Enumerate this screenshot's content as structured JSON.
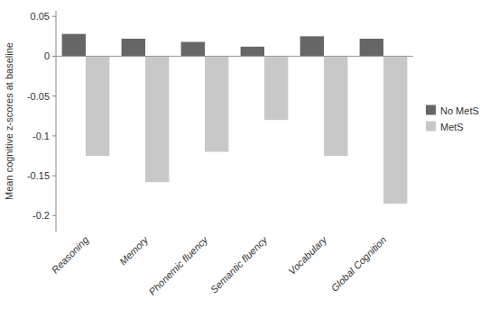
{
  "chart_data": {
    "type": "bar",
    "categories": [
      "Reasoning",
      "Memory",
      "Phonemic fluency",
      "Semantic fluency",
      "Vocabulary",
      "Global Cognition"
    ],
    "series": [
      {
        "name": "No MetS",
        "color": "#666666",
        "values": [
          0.028,
          0.022,
          0.018,
          0.012,
          0.025,
          0.022
        ]
      },
      {
        "name": "MetS",
        "color": "#c8c8c8",
        "values": [
          -0.125,
          -0.158,
          -0.12,
          -0.08,
          -0.125,
          -0.185
        ]
      }
    ],
    "ylabel": "Mean cognitive z-scores at baseline",
    "ylim": [
      -0.22,
      0.057
    ],
    "yticks": [
      -0.2,
      -0.15,
      -0.1,
      -0.05,
      0,
      0.05
    ],
    "grid": false,
    "legend": "right"
  }
}
